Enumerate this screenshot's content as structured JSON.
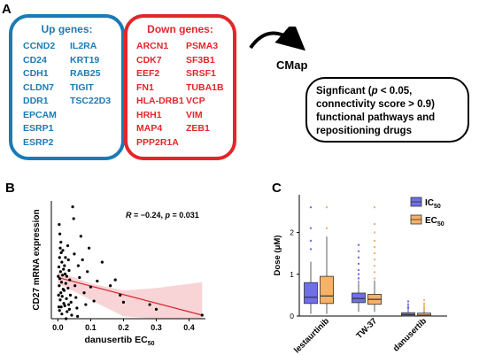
{
  "panelA": {
    "letter": "A",
    "up": {
      "title": "Up genes:",
      "col1": [
        "CCND2",
        "CD24",
        "CDH1",
        "CLDN7",
        "DDR1",
        "EPCAM",
        "ESRP1",
        "ESRP2"
      ],
      "col2": [
        "IL2RA",
        "KRT19",
        "RAB25",
        "TIGIT",
        "TSC22D3"
      ],
      "color": "#1a7bb5"
    },
    "down": {
      "title": "Down genes:",
      "col1": [
        "ARCN1",
        "CDK7",
        "EEF2",
        "FN1",
        "HLA-DRB1",
        "HRH1",
        "MAP4",
        "PPP2R1A"
      ],
      "col2": [
        "PSMA3",
        "SF3B1",
        "SRSF1",
        "TUBA1B",
        "VCP",
        "VIM",
        "ZEB1"
      ],
      "color": "#e3262b"
    },
    "cmap": "CMap",
    "result": {
      "line1_a": "Signficant (",
      "line1_p": "p",
      "line1_b": " < 0.05,",
      "line2": "connectivity score > 0.9)",
      "line3": "functional pathways and",
      "line4": "repositioning drugs"
    }
  },
  "panelB": {
    "letter": "B",
    "stat_R": "R",
    "stat_mid": " = −0.24, ",
    "stat_p": "p",
    "stat_end": " = 0.031",
    "chart_data": {
      "type": "scatter",
      "xlabel": "danusertib EC50",
      "ylabel": "CD27 mRNA expression",
      "x_ticks": [
        "0.0",
        "0.1",
        "0.2",
        "0.3",
        "0.4"
      ],
      "xlim": [
        -0.02,
        0.45
      ],
      "ylim": [
        0,
        1.0
      ],
      "points": [
        [
          0.004,
          0.8
        ],
        [
          0.006,
          0.72
        ],
        [
          0.009,
          0.65
        ],
        [
          0.007,
          0.6
        ],
        [
          0.01,
          0.56
        ],
        [
          0.005,
          0.52
        ],
        [
          0.012,
          0.48
        ],
        [
          0.003,
          0.44
        ],
        [
          0.008,
          0.4
        ],
        [
          0.014,
          0.37
        ],
        [
          0.006,
          0.34
        ],
        [
          0.011,
          0.31
        ],
        [
          0.004,
          0.28
        ],
        [
          0.016,
          0.25
        ],
        [
          0.009,
          0.22
        ],
        [
          0.013,
          0.19
        ],
        [
          0.007,
          0.16
        ],
        [
          0.018,
          0.13
        ],
        [
          0.01,
          0.1
        ],
        [
          0.005,
          0.07
        ],
        [
          0.012,
          0.04
        ],
        [
          0.02,
          0.45
        ],
        [
          0.022,
          0.38
        ],
        [
          0.024,
          0.3
        ],
        [
          0.019,
          0.24
        ],
        [
          0.026,
          0.17
        ],
        [
          0.021,
          0.11
        ],
        [
          0.028,
          0.06
        ],
        [
          0.03,
          0.62
        ],
        [
          0.032,
          0.5
        ],
        [
          0.034,
          0.41
        ],
        [
          0.036,
          0.33
        ],
        [
          0.031,
          0.26
        ],
        [
          0.038,
          0.2
        ],
        [
          0.04,
          0.14
        ],
        [
          0.035,
          0.08
        ],
        [
          0.042,
          0.03
        ],
        [
          0.045,
          0.95
        ],
        [
          0.048,
          0.85
        ],
        [
          0.05,
          0.55
        ],
        [
          0.052,
          0.28
        ],
        [
          0.055,
          0.18
        ],
        [
          0.058,
          0.09
        ],
        [
          0.062,
          0.45
        ],
        [
          0.066,
          0.35
        ],
        [
          0.07,
          0.7
        ],
        [
          0.075,
          0.5
        ],
        [
          0.08,
          0.22
        ],
        [
          0.085,
          0.12
        ],
        [
          0.09,
          0.4
        ],
        [
          0.095,
          0.6
        ],
        [
          0.1,
          0.27
        ],
        [
          0.11,
          0.15
        ],
        [
          0.12,
          0.32
        ],
        [
          0.135,
          0.48
        ],
        [
          0.16,
          0.28
        ],
        [
          0.175,
          0.33
        ],
        [
          0.19,
          0.2
        ],
        [
          0.2,
          0.14
        ],
        [
          0.28,
          0.12
        ],
        [
          0.3,
          0.08
        ],
        [
          0.44,
          0.03
        ],
        [
          0.015,
          0.58
        ],
        [
          0.017,
          0.42
        ],
        [
          0.023,
          0.52
        ],
        [
          0.027,
          0.36
        ],
        [
          0.033,
          0.12
        ],
        [
          0.002,
          0.2
        ],
        [
          0.001,
          0.36
        ],
        [
          0.003,
          0.1
        ],
        [
          0.025,
          0.0
        ],
        [
          0.06,
          0.02
        ]
      ],
      "fit": [
        [
          0.0,
          0.35
        ],
        [
          0.44,
          0.03
        ]
      ]
    }
  },
  "panelC": {
    "letter": "C",
    "chart_data": {
      "type": "box",
      "ylabel": "Dose (μM)",
      "y_ticks": [
        "0",
        "1",
        "2"
      ],
      "ylim": [
        0,
        2.9
      ],
      "categories": [
        "lestaurtinib",
        "TW-37",
        "danusertib"
      ],
      "legend": [
        {
          "name": "IC",
          "sub": "50",
          "color": "#6f6fe6"
        },
        {
          "name": "EC",
          "sub": "50",
          "color": "#f4b26b"
        }
      ],
      "series": [
        {
          "name": "IC50",
          "color": "#6f6fe6",
          "boxes": [
            {
              "min": 0.05,
              "q1": 0.3,
              "median": 0.45,
              "q3": 0.8,
              "max": 1.3,
              "outliers": [
                1.6,
                1.8,
                2.1,
                2.6
              ]
            },
            {
              "min": 0.1,
              "q1": 0.32,
              "median": 0.42,
              "q3": 0.55,
              "max": 0.85,
              "outliers": [
                0.9,
                1.0,
                1.1,
                1.25,
                1.4,
                1.55,
                1.7
              ]
            },
            {
              "min": 0.0,
              "q1": 0.0,
              "median": 0.03,
              "q3": 0.08,
              "max": 0.15,
              "outliers": [
                0.18,
                0.22,
                0.28,
                0.35
              ]
            }
          ]
        },
        {
          "name": "EC50",
          "color": "#f4b26b",
          "boxes": [
            {
              "min": 0.05,
              "q1": 0.3,
              "median": 0.48,
              "q3": 0.95,
              "max": 1.9,
              "outliers": [
                2.1,
                2.6
              ]
            },
            {
              "min": 0.1,
              "q1": 0.28,
              "median": 0.4,
              "q3": 0.52,
              "max": 0.85,
              "outliers": [
                0.9,
                1.05,
                1.2,
                1.35,
                1.5,
                1.65,
                1.8,
                2.0,
                2.2,
                2.6
              ]
            },
            {
              "min": 0.0,
              "q1": 0.0,
              "median": 0.02,
              "q3": 0.07,
              "max": 0.14,
              "outliers": [
                0.17,
                0.2,
                0.25,
                0.3,
                0.38
              ]
            }
          ]
        }
      ]
    }
  }
}
